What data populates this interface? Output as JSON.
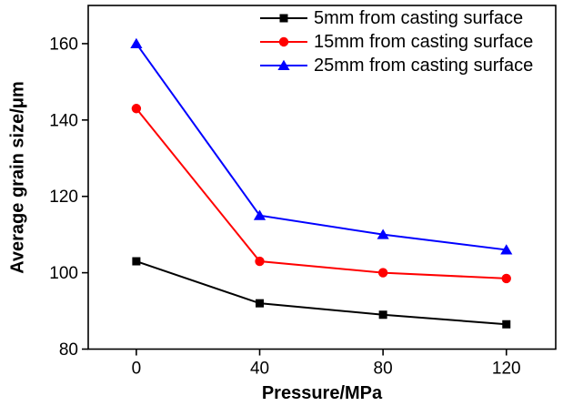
{
  "page": {
    "background_color": "#ffffff",
    "axis_color": "#000000"
  },
  "chart_data": {
    "type": "line",
    "title": "",
    "xlabel": "Pressure/MPa",
    "ylabel": "Average grain size/μm",
    "x": [
      0,
      40,
      80,
      120
    ],
    "series": [
      {
        "name": "5mm from casting surface",
        "color": "#000000",
        "marker": "square",
        "values": [
          103,
          92,
          89,
          86.5
        ]
      },
      {
        "name": "15mm from casting surface",
        "color": "#ff0000",
        "marker": "circle",
        "values": [
          143,
          103,
          100,
          98.5
        ]
      },
      {
        "name": "25mm from casting surface",
        "color": "#0000ff",
        "marker": "triangle-up",
        "values": [
          160,
          115,
          110,
          106
        ]
      }
    ],
    "x_ticks": [
      0,
      40,
      80,
      120
    ],
    "y_ticks": [
      80,
      100,
      120,
      140,
      160
    ],
    "xlim": [
      -15.6,
      136
    ],
    "ylim": [
      80,
      170
    ],
    "grid": false,
    "legend_position": "top-right"
  }
}
